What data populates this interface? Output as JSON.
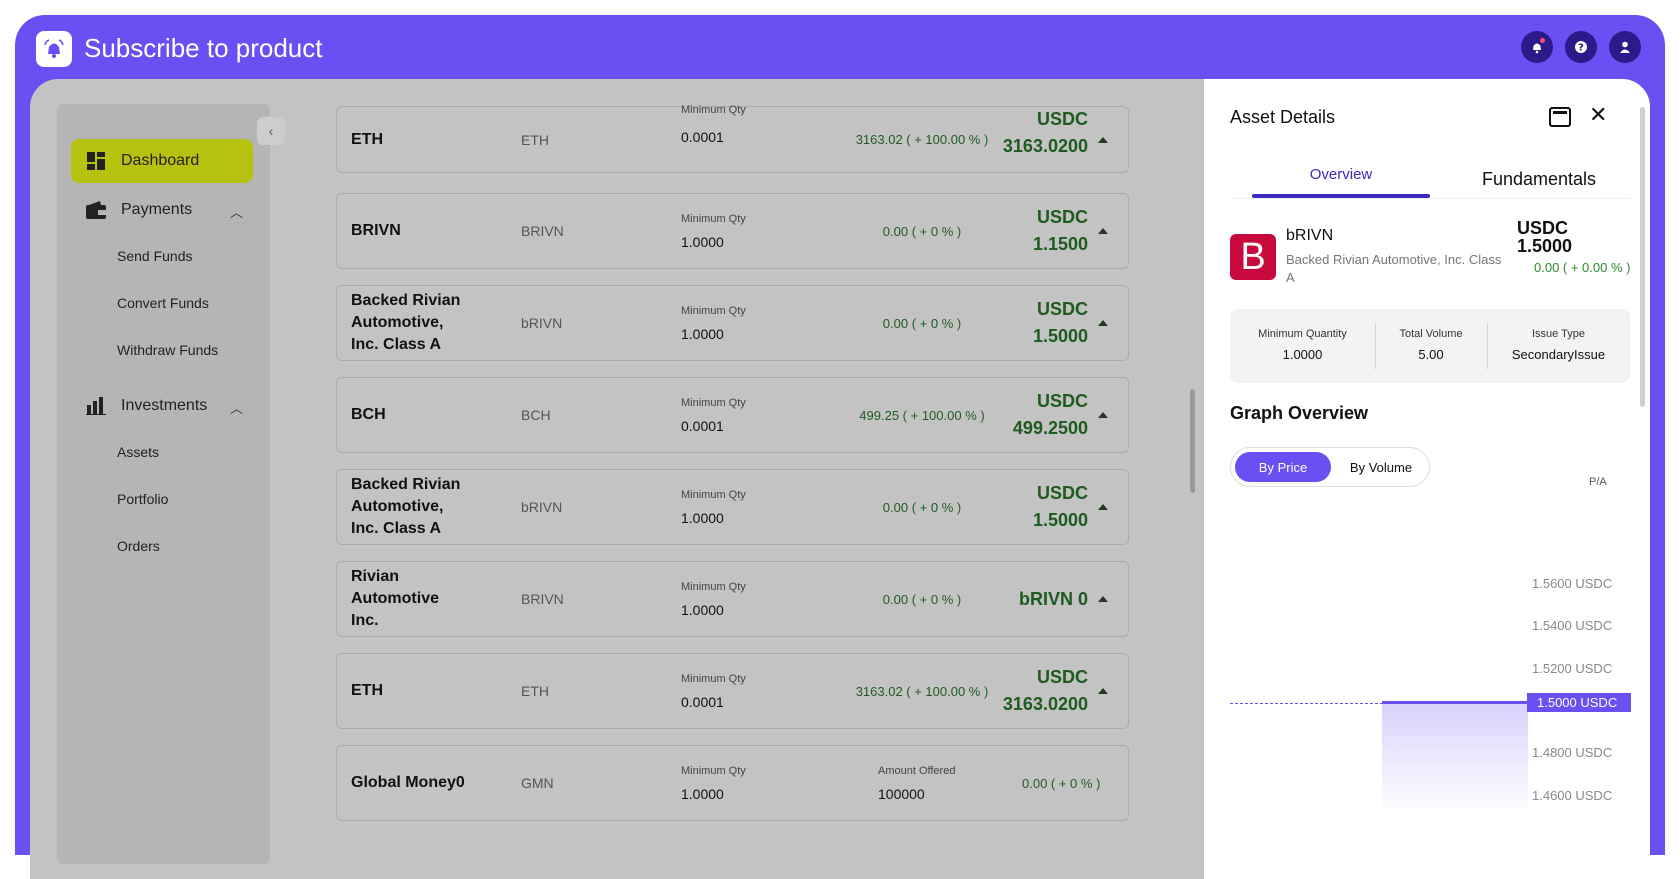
{
  "app": {
    "title": "Subscribe to product"
  },
  "sidebar": {
    "collapse_glyph": "‹",
    "dashboard": "Dashboard",
    "payments": "Payments",
    "send_funds": "Send Funds",
    "convert_funds": "Convert Funds",
    "withdraw_funds": "Withdraw Funds",
    "investments": "Investments",
    "assets": "Assets",
    "portfolio": "Portfolio",
    "orders": "Orders"
  },
  "rows": [
    {
      "name": "ETH",
      "sym": "ETH",
      "mq_label": "Minimum Qty",
      "mq": "0.0001",
      "chg": "3163.02 ( + 100.00 % )",
      "price1": "USDC",
      "price2": "3163.0200"
    },
    {
      "name": "BRIVN",
      "sym": "BRIVN",
      "mq_label": "Minimum Qty",
      "mq": "1.0000",
      "chg": "0.00 ( + 0 % )",
      "price1": "USDC",
      "price2": "1.1500"
    },
    {
      "name": "Backed Rivian Automotive, Inc. Class A",
      "sym": "bRIVN",
      "mq_label": "Minimum Qty",
      "mq": "1.0000",
      "chg": "0.00 ( + 0 % )",
      "price1": "USDC",
      "price2": "1.5000"
    },
    {
      "name": "BCH",
      "sym": "BCH",
      "mq_label": "Minimum Qty",
      "mq": "0.0001",
      "chg": "499.25 ( + 100.00 % )",
      "price1": "USDC",
      "price2": "499.2500"
    },
    {
      "name": "Backed Rivian Automotive, Inc. Class A",
      "sym": "bRIVN",
      "mq_label": "Minimum Qty",
      "mq": "1.0000",
      "chg": "0.00 ( + 0 % )",
      "price1": "USDC",
      "price2": "1.5000"
    },
    {
      "name": "Rivian Automotive Inc.",
      "sym": "BRIVN",
      "mq_label": "Minimum Qty",
      "mq": "1.0000",
      "chg": "0.00 ( + 0 % )",
      "price1": "bRIVN 0",
      "price2": ""
    },
    {
      "name": "ETH",
      "sym": "ETH",
      "mq_label": "Minimum Qty",
      "mq": "0.0001",
      "chg": "3163.02 ( + 100.00 % )",
      "price1": "USDC",
      "price2": "3163.0200"
    },
    {
      "name": "Global Money0",
      "sym": "GMN",
      "mq_label": "Minimum Qty",
      "mq": "1.0000",
      "ao_label": "Amount Offered",
      "ao": "100000",
      "chg": "0.00 ( + 0 % )"
    }
  ],
  "panel": {
    "title": "Asset Details",
    "tab_overview": "Overview",
    "tab_fundamentals": "Fundamentals",
    "asset_logo_letter": "B",
    "asset_symbol": "bRIVN",
    "asset_name": "Backed Rivian Automotive, Inc. Class A",
    "price_currency": "USDC",
    "price_value": "1.5000",
    "price_change": "0.00 ( + 0.00 % )",
    "stats": {
      "min_qty_label": "Minimum Quantity",
      "min_qty": "1.0000",
      "total_vol_label": "Total Volume",
      "total_vol": "5.00",
      "issue_type_label": "Issue Type",
      "issue_type": "SecondaryIssue"
    },
    "graph_title": "Graph Overview",
    "toggle_price": "By Price",
    "toggle_volume": "By Volume",
    "pa_label": "P/A",
    "y_ticks": [
      "1.5600 USDC",
      "1.5400 USDC",
      "1.5200 USDC",
      "1.4800 USDC",
      "1.4600 USDC"
    ],
    "current_price_tag": "1.5000 USDC"
  }
}
